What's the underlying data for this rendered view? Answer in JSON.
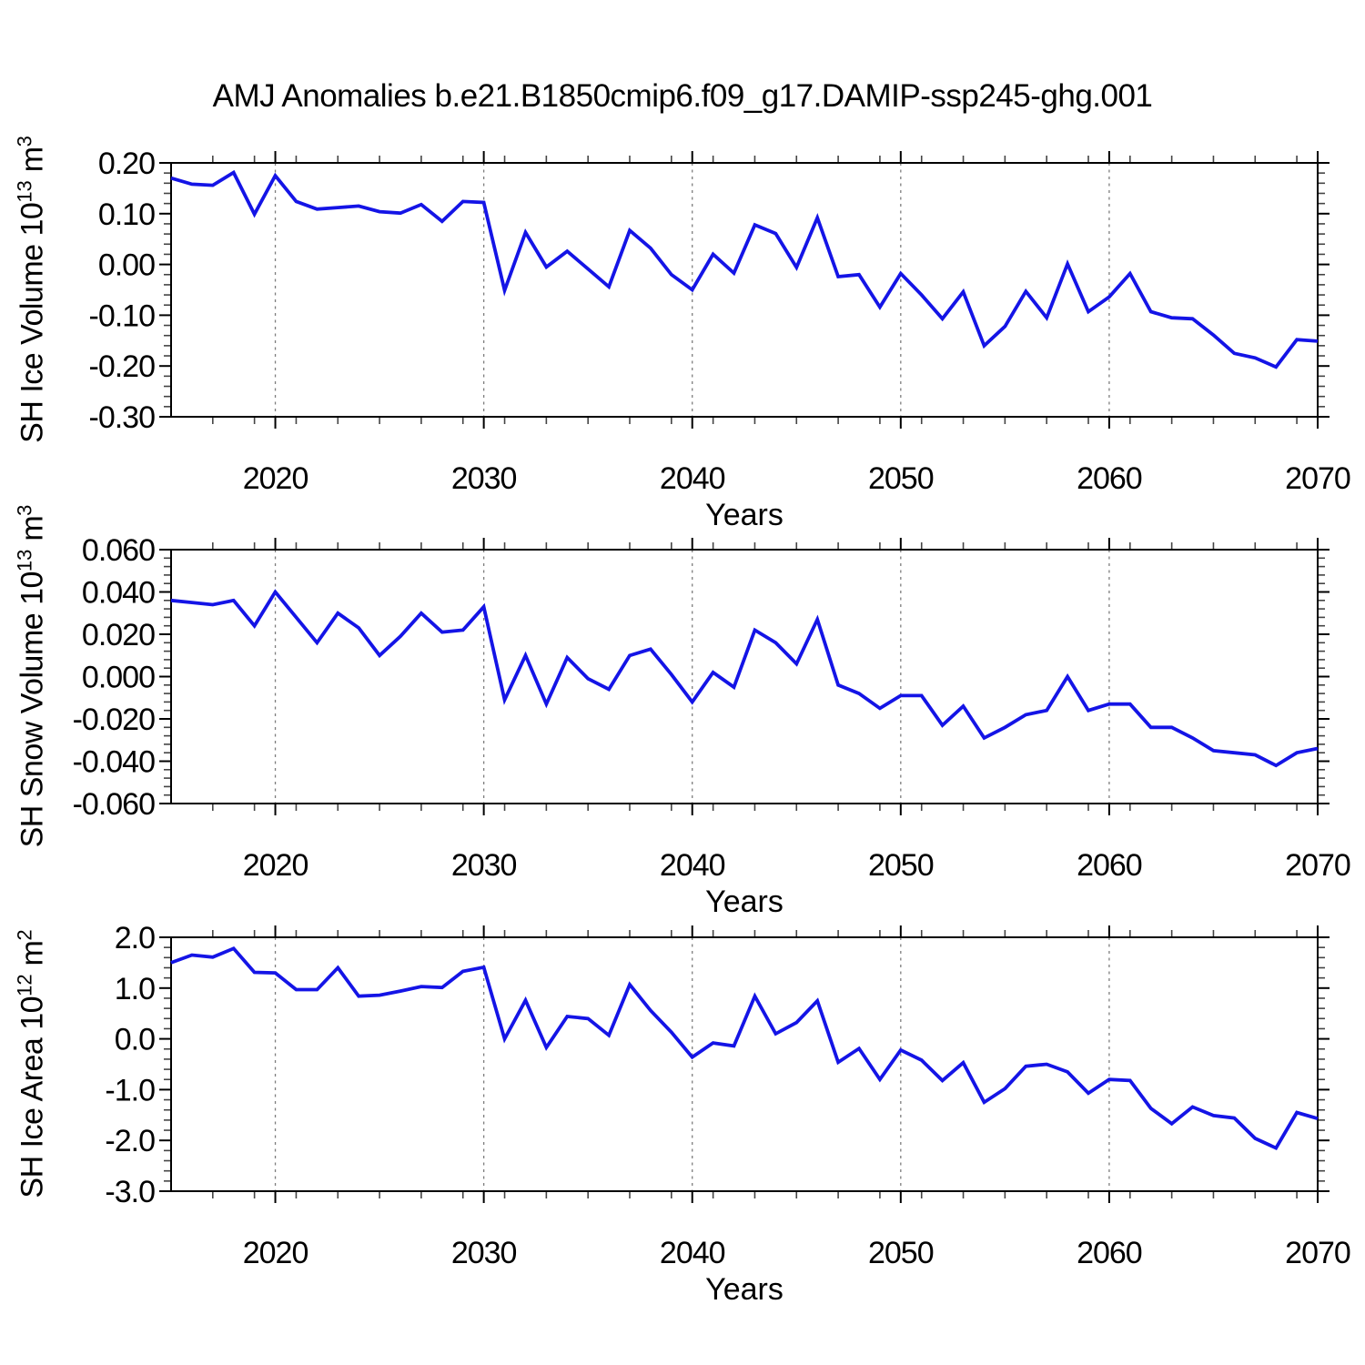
{
  "title": "AMJ Anomalies b.e21.B1850cmip6.f09_g17.DAMIP-ssp245-ghg.001",
  "colors": {
    "line": "#1414e6",
    "grid": "#7d7d7d",
    "axis": "#000000",
    "minor_tick": "#444444",
    "text": "#000000"
  },
  "chart_data": [
    {
      "type": "line",
      "ylabel": {
        "main": "SH Ice Volume 10",
        "exp": "13",
        "unit": " m",
        "unit_exp": "3"
      },
      "xlabel": "Years",
      "ylim": [
        -0.3,
        0.2
      ],
      "y_minor_step": 0.02,
      "yticks": [
        {
          "value": 0.2,
          "label": "0.20"
        },
        {
          "value": 0.1,
          "label": "0.10"
        },
        {
          "value": 0.0,
          "label": "0.00"
        },
        {
          "value": -0.1,
          "label": "-0.10"
        },
        {
          "value": -0.2,
          "label": "-0.20"
        },
        {
          "value": -0.3,
          "label": "-0.30"
        }
      ],
      "xlim": [
        2015,
        2070
      ],
      "x_minor_step": 2,
      "xticks": [
        {
          "value": 2020,
          "label": "2020"
        },
        {
          "value": 2030,
          "label": "2030"
        },
        {
          "value": 2040,
          "label": "2040"
        },
        {
          "value": 2050,
          "label": "2050"
        },
        {
          "value": 2060,
          "label": "2060"
        },
        {
          "value": 2070,
          "label": "2070"
        }
      ],
      "x_gridlines": [
        2020,
        2030,
        2040,
        2050,
        2060
      ],
      "x": [
        2015,
        2016,
        2017,
        2018,
        2019,
        2020,
        2021,
        2022,
        2023,
        2024,
        2025,
        2026,
        2027,
        2028,
        2029,
        2030,
        2031,
        2032,
        2033,
        2034,
        2035,
        2036,
        2037,
        2038,
        2039,
        2040,
        2041,
        2042,
        2043,
        2044,
        2045,
        2046,
        2047,
        2048,
        2049,
        2050,
        2051,
        2052,
        2053,
        2054,
        2055,
        2056,
        2057,
        2058,
        2059,
        2060,
        2061,
        2062,
        2063,
        2064,
        2065,
        2066,
        2067,
        2068,
        2069,
        2070
      ],
      "values": [
        0.17,
        0.158,
        0.156,
        0.181,
        0.099,
        0.175,
        0.124,
        0.109,
        0.112,
        0.115,
        0.104,
        0.101,
        0.118,
        0.085,
        0.124,
        0.122,
        -0.051,
        0.063,
        -0.005,
        0.026,
        -0.009,
        -0.044,
        0.067,
        0.032,
        -0.02,
        -0.05,
        0.02,
        -0.017,
        0.078,
        0.061,
        -0.006,
        0.092,
        -0.024,
        -0.02,
        -0.084,
        -0.018,
        -0.06,
        -0.107,
        -0.054,
        -0.16,
        -0.122,
        -0.053,
        -0.105,
        0.001,
        -0.093,
        -0.064,
        -0.018,
        -0.093,
        -0.105,
        -0.107,
        -0.139,
        -0.175,
        -0.184,
        -0.202,
        -0.148,
        -0.151
      ]
    },
    {
      "type": "line",
      "ylabel": {
        "main": "SH Snow Volume 10",
        "exp": "13",
        "unit": " m",
        "unit_exp": "3"
      },
      "xlabel": "Years",
      "ylim": [
        -0.06,
        0.06
      ],
      "y_minor_step": 0.004,
      "yticks": [
        {
          "value": 0.06,
          "label": "0.060"
        },
        {
          "value": 0.04,
          "label": "0.040"
        },
        {
          "value": 0.02,
          "label": "0.020"
        },
        {
          "value": 0.0,
          "label": "0.000"
        },
        {
          "value": -0.02,
          "label": "-0.020"
        },
        {
          "value": -0.04,
          "label": "-0.040"
        },
        {
          "value": -0.06,
          "label": "-0.060"
        }
      ],
      "xlim": [
        2015,
        2070
      ],
      "x_minor_step": 2,
      "xticks": [
        {
          "value": 2020,
          "label": "2020"
        },
        {
          "value": 2030,
          "label": "2030"
        },
        {
          "value": 2040,
          "label": "2040"
        },
        {
          "value": 2050,
          "label": "2050"
        },
        {
          "value": 2060,
          "label": "2060"
        },
        {
          "value": 2070,
          "label": "2070"
        }
      ],
      "x_gridlines": [
        2020,
        2030,
        2040,
        2050,
        2060
      ],
      "x": [
        2015,
        2016,
        2017,
        2018,
        2019,
        2020,
        2021,
        2022,
        2023,
        2024,
        2025,
        2026,
        2027,
        2028,
        2029,
        2030,
        2031,
        2032,
        2033,
        2034,
        2035,
        2036,
        2037,
        2038,
        2039,
        2040,
        2041,
        2042,
        2043,
        2044,
        2045,
        2046,
        2047,
        2048,
        2049,
        2050,
        2051,
        2052,
        2053,
        2054,
        2055,
        2056,
        2057,
        2058,
        2059,
        2060,
        2061,
        2062,
        2063,
        2064,
        2065,
        2066,
        2067,
        2068,
        2069,
        2070
      ],
      "values": [
        0.036,
        0.035,
        0.034,
        0.036,
        0.024,
        0.04,
        0.028,
        0.016,
        0.03,
        0.023,
        0.01,
        0.019,
        0.03,
        0.021,
        0.022,
        0.033,
        -0.011,
        0.01,
        -0.013,
        0.009,
        -0.001,
        -0.006,
        0.01,
        0.013,
        0.001,
        -0.012,
        0.002,
        -0.005,
        0.022,
        0.016,
        0.006,
        0.027,
        -0.004,
        -0.008,
        -0.015,
        -0.009,
        -0.009,
        -0.023,
        -0.014,
        -0.029,
        -0.024,
        -0.018,
        -0.016,
        0.0,
        -0.016,
        -0.013,
        -0.013,
        -0.024,
        -0.024,
        -0.029,
        -0.035,
        -0.036,
        -0.037,
        -0.042,
        -0.036,
        -0.034
      ]
    },
    {
      "type": "line",
      "ylabel": {
        "main": "SH Ice Area 10",
        "exp": "12",
        "unit": " m",
        "unit_exp": "2"
      },
      "xlabel": "Years",
      "ylim": [
        -3.0,
        2.0
      ],
      "y_minor_step": 0.2,
      "yticks": [
        {
          "value": 2.0,
          "label": "2.0"
        },
        {
          "value": 1.0,
          "label": "1.0"
        },
        {
          "value": 0.0,
          "label": "0.0"
        },
        {
          "value": -1.0,
          "label": "-1.0"
        },
        {
          "value": -2.0,
          "label": "-2.0"
        },
        {
          "value": -3.0,
          "label": "-3.0"
        }
      ],
      "xlim": [
        2015,
        2070
      ],
      "x_minor_step": 2,
      "xticks": [
        {
          "value": 2020,
          "label": "2020"
        },
        {
          "value": 2030,
          "label": "2030"
        },
        {
          "value": 2040,
          "label": "2040"
        },
        {
          "value": 2050,
          "label": "2050"
        },
        {
          "value": 2060,
          "label": "2060"
        },
        {
          "value": 2070,
          "label": "2070"
        }
      ],
      "x_gridlines": [
        2020,
        2030,
        2040,
        2050,
        2060
      ],
      "x": [
        2015,
        2016,
        2017,
        2018,
        2019,
        2020,
        2021,
        2022,
        2023,
        2024,
        2025,
        2026,
        2027,
        2028,
        2029,
        2030,
        2031,
        2032,
        2033,
        2034,
        2035,
        2036,
        2037,
        2038,
        2039,
        2040,
        2041,
        2042,
        2043,
        2044,
        2045,
        2046,
        2047,
        2048,
        2049,
        2050,
        2051,
        2052,
        2053,
        2054,
        2055,
        2056,
        2057,
        2058,
        2059,
        2060,
        2061,
        2062,
        2063,
        2064,
        2065,
        2066,
        2067,
        2068,
        2069,
        2070
      ],
      "values": [
        1.5,
        1.65,
        1.61,
        1.78,
        1.31,
        1.3,
        0.97,
        0.97,
        1.4,
        0.84,
        0.86,
        0.94,
        1.03,
        1.01,
        1.33,
        1.41,
        0.0,
        0.76,
        -0.17,
        0.44,
        0.4,
        0.07,
        1.07,
        0.56,
        0.13,
        -0.36,
        -0.08,
        -0.14,
        0.84,
        0.1,
        0.32,
        0.75,
        -0.46,
        -0.19,
        -0.8,
        -0.22,
        -0.42,
        -0.82,
        -0.47,
        -1.25,
        -0.98,
        -0.54,
        -0.5,
        -0.65,
        -1.07,
        -0.8,
        -0.82,
        -1.37,
        -1.67,
        -1.34,
        -1.51,
        -1.56,
        -1.96,
        -2.15,
        -1.45,
        -1.57
      ]
    }
  ]
}
